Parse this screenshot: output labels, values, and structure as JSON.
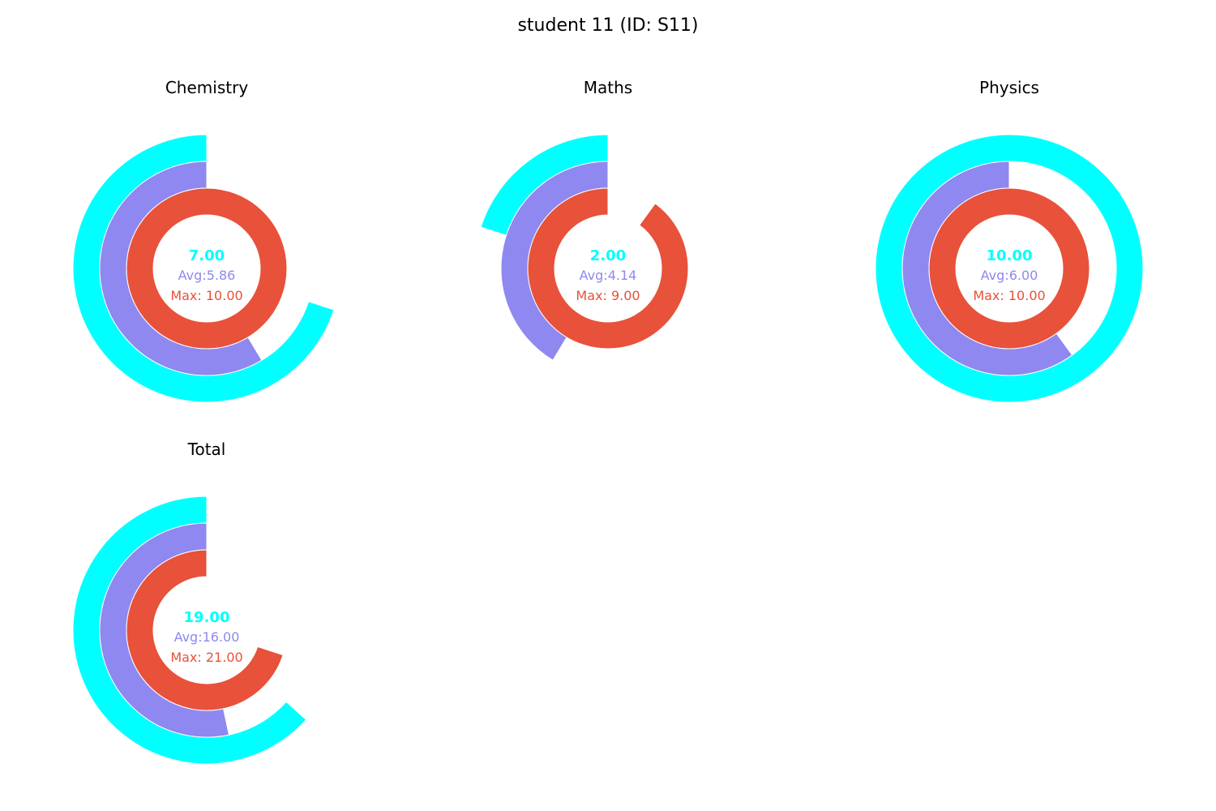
{
  "colors": {
    "score": "#00ffff",
    "avg": "#8e88f0",
    "max": "#e8513a",
    "separator": "#ffffff"
  },
  "chart_data": {
    "type": "radial-bar",
    "title": "student 11 (ID: S11)",
    "ring_order_outer_to_inner": [
      "score",
      "average",
      "max"
    ],
    "panels": [
      {
        "subject": "Chemistry",
        "score": 7.0,
        "average": 5.86,
        "max": 10.0,
        "score_label": "7.00",
        "avg_label": "Avg:5.86",
        "max_label": "Max: 10.00",
        "full_scale": 10
      },
      {
        "subject": "Maths",
        "score": 2.0,
        "average": 4.14,
        "max": 9.0,
        "score_label": "2.00",
        "avg_label": "Avg:4.14",
        "max_label": "Max: 9.00",
        "full_scale": 10
      },
      {
        "subject": "Physics",
        "score": 10.0,
        "average": 6.0,
        "max": 10.0,
        "score_label": "10.00",
        "avg_label": "Avg:6.00",
        "max_label": "Max: 10.00",
        "full_scale": 10
      },
      {
        "subject": "Total",
        "score": 19.0,
        "average": 16.0,
        "max": 21.0,
        "score_label": "19.00",
        "avg_label": "Avg:16.00",
        "max_label": "Max: 21.00",
        "full_scale": 30
      }
    ]
  }
}
